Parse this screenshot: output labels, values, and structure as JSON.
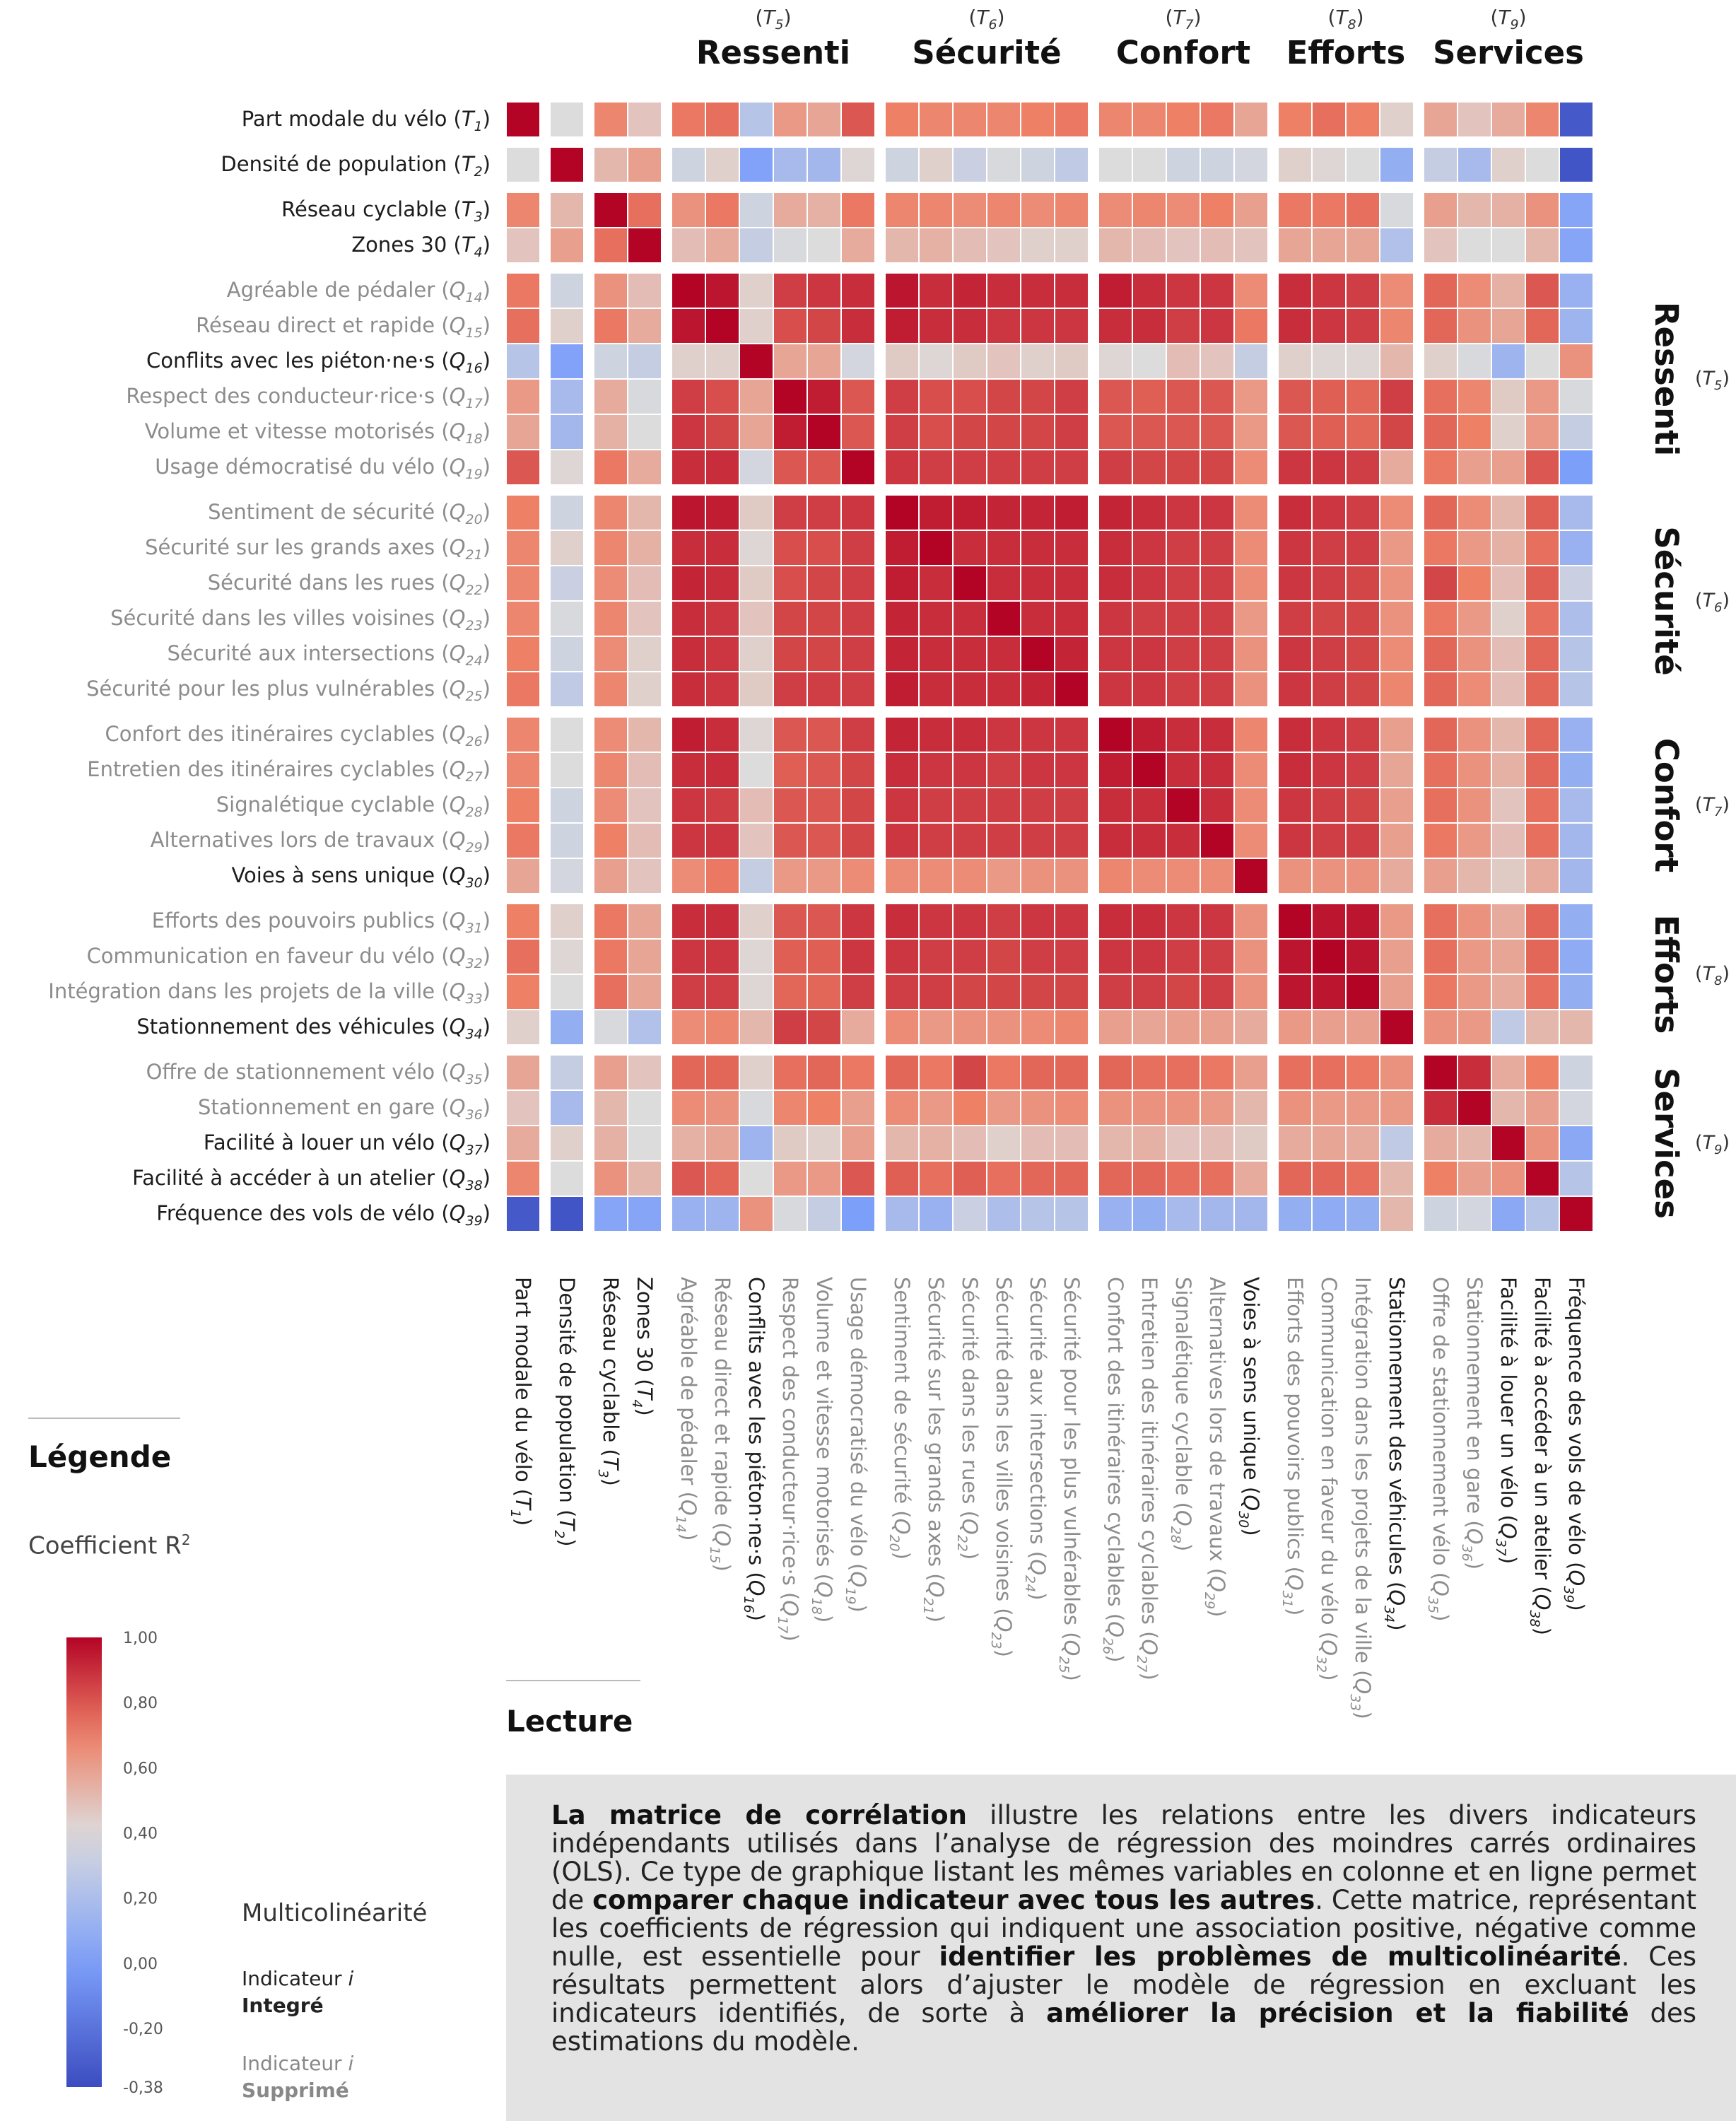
{
  "chart_data": {
    "type": "heatmap",
    "title": "",
    "colorbar": {
      "title": "Coefficient R²",
      "min": -0.38,
      "max": 1.0,
      "tick_labels": [
        "1,00",
        "0,80",
        "0,60",
        "0,40",
        "0,20",
        "0,00",
        "-0,20",
        "-0,38"
      ],
      "tick_values": [
        1.0,
        0.8,
        0.6,
        0.4,
        0.2,
        0.0,
        -0.2,
        -0.38
      ],
      "colors": {
        "low": "#3b4cc0",
        "mid": "#dddcdc",
        "high": "#b40426"
      }
    },
    "groups": [
      {
        "name": "Ressenti",
        "code": "T",
        "sub": "5"
      },
      {
        "name": "Sécurité",
        "code": "T",
        "sub": "6"
      },
      {
        "name": "Confort",
        "code": "T",
        "sub": "7"
      },
      {
        "name": "Efforts",
        "code": "T",
        "sub": "8"
      },
      {
        "name": "Services",
        "code": "T",
        "sub": "9"
      }
    ],
    "variables": [
      {
        "label": "Part modale du vélo",
        "code": "T",
        "sub": "1",
        "kept": true
      },
      {
        "label": "Densité de population",
        "code": "T",
        "sub": "2",
        "kept": true
      },
      {
        "label": "Réseau cyclable",
        "code": "T",
        "sub": "3",
        "kept": true
      },
      {
        "label": "Zones 30",
        "code": "T",
        "sub": "4",
        "kept": true
      },
      {
        "label": "Agréable de pédaler",
        "code": "Q",
        "sub": "14",
        "kept": false
      },
      {
        "label": "Réseau direct et rapide",
        "code": "Q",
        "sub": "15",
        "kept": false
      },
      {
        "label": "Conflits avec les piéton·ne·s",
        "code": "Q",
        "sub": "16",
        "kept": true
      },
      {
        "label": "Respect des conducteur·rice·s",
        "code": "Q",
        "sub": "17",
        "kept": false
      },
      {
        "label": "Volume et vitesse motorisés",
        "code": "Q",
        "sub": "18",
        "kept": false
      },
      {
        "label": "Usage démocratisé du vélo",
        "code": "Q",
        "sub": "19",
        "kept": false
      },
      {
        "label": "Sentiment de sécurité",
        "code": "Q",
        "sub": "20",
        "kept": false
      },
      {
        "label": "Sécurité sur les grands axes",
        "code": "Q",
        "sub": "21",
        "kept": false
      },
      {
        "label": "Sécurité dans les rues",
        "code": "Q",
        "sub": "22",
        "kept": false
      },
      {
        "label": "Sécurité dans les villes voisines",
        "code": "Q",
        "sub": "23",
        "kept": false
      },
      {
        "label": "Sécurité aux intersections",
        "code": "Q",
        "sub": "24",
        "kept": false
      },
      {
        "label": "Sécurité pour les plus vulnérables",
        "code": "Q",
        "sub": "25",
        "kept": false
      },
      {
        "label": "Confort des itinéraires cyclables",
        "code": "Q",
        "sub": "26",
        "kept": false
      },
      {
        "label": "Entretien des itinéraires cyclables",
        "code": "Q",
        "sub": "27",
        "kept": false
      },
      {
        "label": "Signalétique cyclable",
        "code": "Q",
        "sub": "28",
        "kept": false
      },
      {
        "label": "Alternatives lors de travaux",
        "code": "Q",
        "sub": "29",
        "kept": false
      },
      {
        "label": "Voies à sens unique",
        "code": "Q",
        "sub": "30",
        "kept": true
      },
      {
        "label": "Efforts des pouvoirs publics",
        "code": "Q",
        "sub": "31",
        "kept": false
      },
      {
        "label": "Communication en faveur du vélo",
        "code": "Q",
        "sub": "32",
        "kept": false
      },
      {
        "label": "Intégration dans les projets de la ville",
        "code": "Q",
        "sub": "33",
        "kept": false
      },
      {
        "label": "Stationnement des véhicules",
        "code": "Q",
        "sub": "34",
        "kept": true
      },
      {
        "label": "Offre de stationnement vélo",
        "code": "Q",
        "sub": "35",
        "kept": false
      },
      {
        "label": "Stationnement en gare",
        "code": "Q",
        "sub": "36",
        "kept": false
      },
      {
        "label": "Facilité à louer un vélo",
        "code": "Q",
        "sub": "37",
        "kept": true
      },
      {
        "label": "Facilité à accéder à un atelier",
        "code": "Q",
        "sub": "38",
        "kept": true
      },
      {
        "label": "Fréquence des vols de vélo",
        "code": "Q",
        "sub": "39",
        "kept": true
      }
    ],
    "matrix": [
      [
        1.0,
        0.4,
        0.68,
        0.48,
        0.72,
        0.74,
        0.24,
        0.62,
        0.58,
        0.8,
        0.7,
        0.68,
        0.68,
        0.68,
        0.7,
        0.72,
        0.68,
        0.68,
        0.7,
        0.72,
        0.58,
        0.7,
        0.74,
        0.7,
        0.44,
        0.58,
        0.48,
        0.56,
        0.68,
        -0.32
      ],
      [
        0.4,
        1.0,
        0.52,
        0.6,
        0.34,
        0.44,
        0.02,
        0.18,
        0.16,
        0.42,
        0.34,
        0.44,
        0.32,
        0.38,
        0.34,
        0.28,
        0.4,
        0.4,
        0.34,
        0.34,
        0.36,
        0.44,
        0.42,
        0.4,
        0.1,
        0.3,
        0.18,
        0.44,
        0.4,
        -0.34
      ],
      [
        0.68,
        0.52,
        1.0,
        0.74,
        0.64,
        0.72,
        0.34,
        0.56,
        0.54,
        0.72,
        0.68,
        0.68,
        0.66,
        0.68,
        0.66,
        0.68,
        0.66,
        0.68,
        0.66,
        0.7,
        0.6,
        0.72,
        0.72,
        0.74,
        0.38,
        0.6,
        0.52,
        0.54,
        0.64,
        0.04
      ],
      [
        0.48,
        0.6,
        0.74,
        1.0,
        0.5,
        0.56,
        0.3,
        0.38,
        0.4,
        0.56,
        0.52,
        0.54,
        0.5,
        0.48,
        0.44,
        0.44,
        0.52,
        0.5,
        0.48,
        0.5,
        0.48,
        0.58,
        0.58,
        0.58,
        0.22,
        0.48,
        0.4,
        0.4,
        0.52,
        0.04
      ],
      [
        0.72,
        0.34,
        0.64,
        0.5,
        1.0,
        0.96,
        0.44,
        0.86,
        0.88,
        0.9,
        0.96,
        0.9,
        0.92,
        0.9,
        0.9,
        0.9,
        0.94,
        0.9,
        0.88,
        0.88,
        0.66,
        0.9,
        0.88,
        0.86,
        0.66,
        0.76,
        0.66,
        0.54,
        0.8,
        0.12
      ],
      [
        0.74,
        0.44,
        0.72,
        0.56,
        0.96,
        1.0,
        0.44,
        0.82,
        0.84,
        0.9,
        0.94,
        0.9,
        0.9,
        0.88,
        0.88,
        0.88,
        0.9,
        0.9,
        0.86,
        0.88,
        0.72,
        0.9,
        0.88,
        0.86,
        0.68,
        0.76,
        0.64,
        0.58,
        0.76,
        0.14
      ],
      [
        0.24,
        0.02,
        0.34,
        0.3,
        0.44,
        0.44,
        1.0,
        0.58,
        0.58,
        0.36,
        0.46,
        0.42,
        0.46,
        0.48,
        0.44,
        0.46,
        0.42,
        0.4,
        0.5,
        0.48,
        0.3,
        0.44,
        0.42,
        0.42,
        0.52,
        0.44,
        0.38,
        0.14,
        0.4,
        0.64
      ],
      [
        0.62,
        0.18,
        0.56,
        0.38,
        0.86,
        0.82,
        0.58,
        1.0,
        0.94,
        0.8,
        0.86,
        0.82,
        0.82,
        0.84,
        0.84,
        0.86,
        0.8,
        0.78,
        0.8,
        0.8,
        0.62,
        0.8,
        0.78,
        0.76,
        0.86,
        0.74,
        0.68,
        0.46,
        0.62,
        0.38
      ],
      [
        0.58,
        0.16,
        0.54,
        0.4,
        0.88,
        0.84,
        0.58,
        0.94,
        1.0,
        0.8,
        0.86,
        0.82,
        0.84,
        0.84,
        0.84,
        0.86,
        0.8,
        0.8,
        0.8,
        0.8,
        0.62,
        0.8,
        0.78,
        0.76,
        0.84,
        0.76,
        0.7,
        0.44,
        0.62,
        0.3
      ],
      [
        0.8,
        0.42,
        0.72,
        0.56,
        0.9,
        0.9,
        0.36,
        0.8,
        0.8,
        1.0,
        0.88,
        0.86,
        0.86,
        0.86,
        0.86,
        0.86,
        0.86,
        0.84,
        0.84,
        0.84,
        0.66,
        0.88,
        0.88,
        0.86,
        0.56,
        0.72,
        0.6,
        0.6,
        0.8,
        0.0
      ],
      [
        0.7,
        0.34,
        0.68,
        0.52,
        0.96,
        0.94,
        0.46,
        0.86,
        0.86,
        0.88,
        1.0,
        0.94,
        0.94,
        0.92,
        0.92,
        0.94,
        0.92,
        0.9,
        0.88,
        0.88,
        0.66,
        0.9,
        0.88,
        0.86,
        0.66,
        0.76,
        0.66,
        0.52,
        0.78,
        0.18
      ],
      [
        0.68,
        0.44,
        0.68,
        0.54,
        0.9,
        0.9,
        0.42,
        0.82,
        0.82,
        0.86,
        0.94,
        1.0,
        0.9,
        0.9,
        0.9,
        0.9,
        0.9,
        0.88,
        0.86,
        0.86,
        0.66,
        0.88,
        0.86,
        0.86,
        0.62,
        0.72,
        0.62,
        0.54,
        0.74,
        0.12
      ],
      [
        0.68,
        0.32,
        0.66,
        0.5,
        0.92,
        0.9,
        0.46,
        0.82,
        0.84,
        0.86,
        0.94,
        0.9,
        1.0,
        0.9,
        0.9,
        0.9,
        0.9,
        0.88,
        0.86,
        0.86,
        0.66,
        0.88,
        0.86,
        0.84,
        0.64,
        0.84,
        0.7,
        0.5,
        0.78,
        0.32
      ],
      [
        0.68,
        0.38,
        0.68,
        0.48,
        0.9,
        0.88,
        0.48,
        0.84,
        0.84,
        0.86,
        0.92,
        0.9,
        0.9,
        1.0,
        0.9,
        0.9,
        0.88,
        0.86,
        0.86,
        0.86,
        0.62,
        0.86,
        0.84,
        0.84,
        0.64,
        0.72,
        0.62,
        0.44,
        0.74,
        0.2
      ],
      [
        0.7,
        0.34,
        0.66,
        0.44,
        0.9,
        0.88,
        0.44,
        0.84,
        0.84,
        0.86,
        0.92,
        0.9,
        0.9,
        0.9,
        1.0,
        0.92,
        0.88,
        0.88,
        0.86,
        0.86,
        0.64,
        0.88,
        0.86,
        0.84,
        0.66,
        0.76,
        0.64,
        0.5,
        0.76,
        0.24
      ],
      [
        0.72,
        0.28,
        0.68,
        0.44,
        0.9,
        0.88,
        0.46,
        0.86,
        0.86,
        0.86,
        0.94,
        0.9,
        0.9,
        0.9,
        0.92,
        1.0,
        0.88,
        0.88,
        0.86,
        0.86,
        0.64,
        0.88,
        0.86,
        0.84,
        0.68,
        0.76,
        0.66,
        0.5,
        0.76,
        0.24
      ],
      [
        0.68,
        0.4,
        0.66,
        0.52,
        0.94,
        0.9,
        0.42,
        0.8,
        0.8,
        0.86,
        0.92,
        0.9,
        0.9,
        0.88,
        0.88,
        0.88,
        1.0,
        0.94,
        0.9,
        0.9,
        0.68,
        0.9,
        0.88,
        0.86,
        0.6,
        0.76,
        0.64,
        0.52,
        0.76,
        0.12
      ],
      [
        0.68,
        0.4,
        0.68,
        0.5,
        0.9,
        0.9,
        0.4,
        0.78,
        0.8,
        0.84,
        0.9,
        0.88,
        0.88,
        0.86,
        0.88,
        0.88,
        0.94,
        1.0,
        0.9,
        0.9,
        0.66,
        0.9,
        0.88,
        0.86,
        0.58,
        0.74,
        0.64,
        0.54,
        0.76,
        0.1
      ],
      [
        0.7,
        0.34,
        0.66,
        0.48,
        0.88,
        0.86,
        0.5,
        0.8,
        0.8,
        0.84,
        0.88,
        0.86,
        0.86,
        0.86,
        0.86,
        0.86,
        0.9,
        0.9,
        1.0,
        0.9,
        0.66,
        0.88,
        0.86,
        0.84,
        0.6,
        0.74,
        0.64,
        0.48,
        0.74,
        0.18
      ],
      [
        0.72,
        0.34,
        0.7,
        0.5,
        0.88,
        0.88,
        0.48,
        0.8,
        0.8,
        0.84,
        0.88,
        0.86,
        0.86,
        0.86,
        0.86,
        0.86,
        0.9,
        0.9,
        0.9,
        1.0,
        0.66,
        0.88,
        0.86,
        0.86,
        0.6,
        0.72,
        0.62,
        0.5,
        0.74,
        0.16
      ],
      [
        0.58,
        0.36,
        0.6,
        0.48,
        0.66,
        0.72,
        0.3,
        0.62,
        0.62,
        0.66,
        0.66,
        0.66,
        0.66,
        0.62,
        0.64,
        0.64,
        0.68,
        0.66,
        0.66,
        0.66,
        1.0,
        0.64,
        0.64,
        0.64,
        0.56,
        0.6,
        0.52,
        0.46,
        0.56,
        0.16
      ],
      [
        0.7,
        0.44,
        0.72,
        0.58,
        0.9,
        0.9,
        0.44,
        0.8,
        0.8,
        0.88,
        0.9,
        0.88,
        0.88,
        0.86,
        0.88,
        0.88,
        0.9,
        0.9,
        0.88,
        0.88,
        0.64,
        1.0,
        0.96,
        0.96,
        0.62,
        0.74,
        0.64,
        0.56,
        0.76,
        0.1
      ],
      [
        0.74,
        0.42,
        0.72,
        0.58,
        0.88,
        0.88,
        0.42,
        0.78,
        0.78,
        0.88,
        0.88,
        0.86,
        0.86,
        0.84,
        0.86,
        0.86,
        0.88,
        0.88,
        0.86,
        0.86,
        0.64,
        0.96,
        1.0,
        0.96,
        0.6,
        0.74,
        0.62,
        0.58,
        0.76,
        0.08
      ],
      [
        0.7,
        0.4,
        0.74,
        0.58,
        0.86,
        0.86,
        0.42,
        0.76,
        0.76,
        0.86,
        0.86,
        0.86,
        0.84,
        0.84,
        0.84,
        0.84,
        0.86,
        0.86,
        0.84,
        0.86,
        0.64,
        0.96,
        0.96,
        1.0,
        0.6,
        0.72,
        0.62,
        0.56,
        0.74,
        0.1
      ],
      [
        0.44,
        0.1,
        0.38,
        0.22,
        0.66,
        0.68,
        0.52,
        0.86,
        0.84,
        0.56,
        0.66,
        0.62,
        0.64,
        0.64,
        0.66,
        0.68,
        0.6,
        0.58,
        0.6,
        0.6,
        0.56,
        0.62,
        0.6,
        0.6,
        1.0,
        0.64,
        0.62,
        0.28,
        0.52,
        0.52
      ],
      [
        0.58,
        0.3,
        0.6,
        0.48,
        0.76,
        0.76,
        0.44,
        0.74,
        0.76,
        0.72,
        0.76,
        0.72,
        0.84,
        0.72,
        0.76,
        0.76,
        0.76,
        0.74,
        0.74,
        0.72,
        0.6,
        0.74,
        0.74,
        0.72,
        0.64,
        1.0,
        0.9,
        0.56,
        0.7,
        0.34
      ],
      [
        0.48,
        0.18,
        0.52,
        0.4,
        0.66,
        0.64,
        0.38,
        0.68,
        0.7,
        0.6,
        0.66,
        0.62,
        0.7,
        0.62,
        0.64,
        0.66,
        0.64,
        0.64,
        0.64,
        0.62,
        0.52,
        0.64,
        0.62,
        0.62,
        0.62,
        0.9,
        1.0,
        0.52,
        0.6,
        0.36
      ],
      [
        0.56,
        0.44,
        0.54,
        0.4,
        0.54,
        0.58,
        0.14,
        0.46,
        0.44,
        0.6,
        0.52,
        0.54,
        0.5,
        0.44,
        0.5,
        0.5,
        0.52,
        0.54,
        0.48,
        0.5,
        0.46,
        0.56,
        0.58,
        0.56,
        0.28,
        0.56,
        0.52,
        1.0,
        0.64,
        0.06
      ],
      [
        0.68,
        0.4,
        0.64,
        0.52,
        0.8,
        0.76,
        0.4,
        0.62,
        0.62,
        0.8,
        0.78,
        0.74,
        0.78,
        0.74,
        0.76,
        0.76,
        0.76,
        0.76,
        0.74,
        0.74,
        0.56,
        0.76,
        0.76,
        0.74,
        0.52,
        0.7,
        0.6,
        0.64,
        1.0,
        0.24
      ],
      [
        -0.32,
        -0.34,
        0.04,
        0.04,
        0.12,
        0.14,
        0.64,
        0.38,
        0.3,
        0.0,
        0.18,
        0.12,
        0.32,
        0.2,
        0.24,
        0.24,
        0.12,
        0.1,
        0.18,
        0.16,
        0.16,
        0.1,
        0.08,
        0.1,
        0.52,
        0.34,
        0.36,
        0.06,
        0.24,
        1.0
      ]
    ]
  },
  "legend": {
    "title": "Légende",
    "coef_label": "Coefficient R",
    "coef_sup": "2",
    "multicolinearity": "Multicolinéarité",
    "integrated_line1": "Indicateur ",
    "integrated_i": "i",
    "integrated_line2": "Integré",
    "removed_line1": "Indicateur ",
    "removed_i": "i",
    "removed_line2": "Supprimé"
  },
  "lecture": {
    "title": "Lecture",
    "parts": [
      {
        "b": true,
        "t": "La matrice de corrélation"
      },
      {
        "b": false,
        "t": " illustre les relations entre les divers indicateurs indépendants utilisés dans l’analyse de régression des moindres carrés ordinaires (OLS). Ce type de graphique listant les mêmes variables en colonne et en ligne permet de "
      },
      {
        "b": true,
        "t": "comparer chaque indicateur avec tous les autres"
      },
      {
        "b": false,
        "t": ". Cette matrice, représentant les coefficients de régression qui indiquent une association positive, négative comme nulle, est essentielle pour "
      },
      {
        "b": true,
        "t": "identifier les problèmes de multicolinéarité"
      },
      {
        "b": false,
        "t": ". Ces résultats permettent alors d’ajuster le modèle de régression en excluant les indicateurs identifiés, de sorte à "
      },
      {
        "b": true,
        "t": "améliorer la précision et la fiabilité"
      },
      {
        "b": false,
        "t": " des estimations du modèle."
      }
    ]
  }
}
